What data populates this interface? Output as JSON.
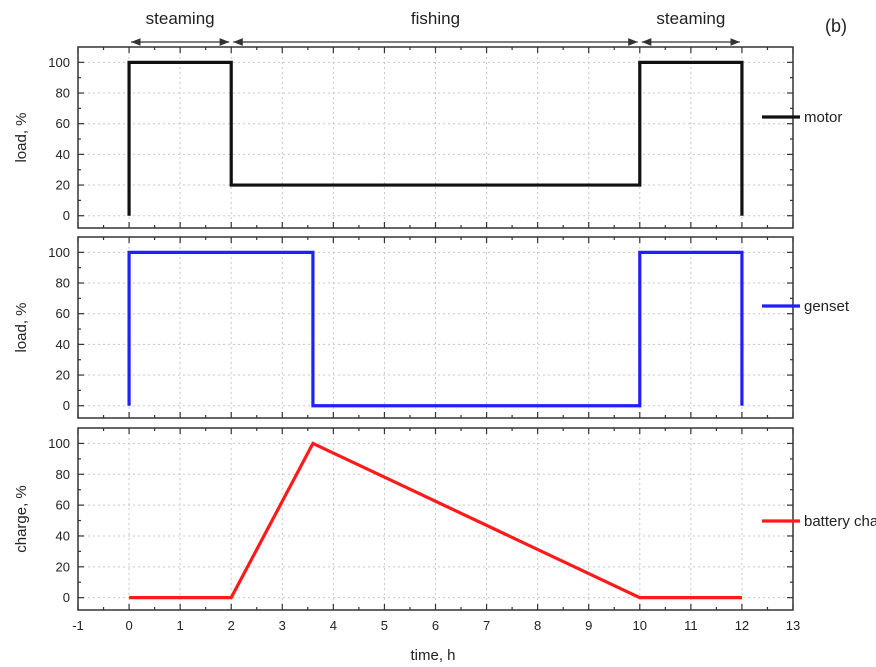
{
  "chart_data": {
    "type": "line",
    "panel_tag": "(b)",
    "xlabel": "time, h",
    "xlim": [
      -1,
      13
    ],
    "xticks": [
      -1,
      0,
      1,
      2,
      3,
      4,
      5,
      6,
      7,
      8,
      9,
      10,
      11,
      12,
      13
    ],
    "grid": true,
    "legend_placement": "right",
    "phases": [
      {
        "label": "steaming",
        "start": 0,
        "end": 2
      },
      {
        "label": "fishing",
        "start": 2,
        "end": 10
      },
      {
        "label": "steaming",
        "start": 10,
        "end": 12
      }
    ],
    "panels": [
      {
        "ylabel": "load, %",
        "ylim": [
          -8,
          110
        ],
        "yticks": [
          0,
          20,
          40,
          60,
          80,
          100
        ],
        "series": [
          {
            "name": "motor",
            "color": "#111111",
            "points": [
              [
                0,
                0
              ],
              [
                0,
                100
              ],
              [
                2,
                100
              ],
              [
                2,
                20
              ],
              [
                10,
                20
              ],
              [
                10,
                100
              ],
              [
                12,
                100
              ],
              [
                12,
                0
              ]
            ]
          }
        ]
      },
      {
        "ylabel": "load, %",
        "ylim": [
          -8,
          110
        ],
        "yticks": [
          0,
          20,
          40,
          60,
          80,
          100
        ],
        "series": [
          {
            "name": "genset",
            "color": "#1f1fff",
            "points": [
              [
                0,
                0
              ],
              [
                0,
                100
              ],
              [
                3.6,
                100
              ],
              [
                3.6,
                0
              ],
              [
                10,
                0
              ],
              [
                10,
                100
              ],
              [
                12,
                100
              ],
              [
                12,
                0
              ]
            ]
          }
        ]
      },
      {
        "ylabel": "charge, %",
        "ylim": [
          -8,
          110
        ],
        "yticks": [
          0,
          20,
          40,
          60,
          80,
          100
        ],
        "series": [
          {
            "name": "battery charge level",
            "color": "#ff1a1a",
            "points": [
              [
                0,
                0
              ],
              [
                2,
                0
              ],
              [
                3.6,
                100
              ],
              [
                10,
                0
              ],
              [
                12,
                0
              ]
            ]
          }
        ]
      }
    ]
  }
}
